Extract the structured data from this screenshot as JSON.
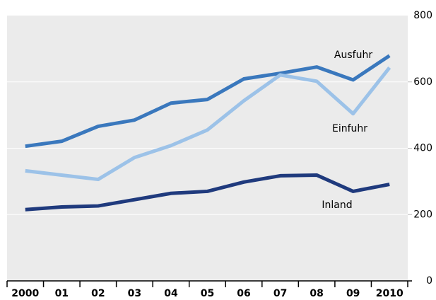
{
  "chart_data": {
    "type": "line",
    "categories": [
      "2000",
      "01",
      "02",
      "03",
      "04",
      "05",
      "06",
      "07",
      "08",
      "09",
      "2010"
    ],
    "series": [
      {
        "name": "Ausfuhr",
        "color": "#3a78bd",
        "values": [
          406,
          421,
          466,
          485,
          536,
          547,
          609,
          626,
          645,
          606,
          679
        ]
      },
      {
        "name": "Einfuhr",
        "color": "#9cc2e8",
        "values": [
          332,
          319,
          306,
          372,
          408,
          455,
          543,
          621,
          602,
          504,
          643
        ]
      },
      {
        "name": "Inland",
        "color": "#1f3a7d",
        "values": [
          215,
          223,
          226,
          245,
          264,
          270,
          298,
          317,
          319,
          270,
          291
        ]
      }
    ],
    "ylim": [
      0,
      800
    ],
    "yticks": [
      0,
      200,
      400,
      600,
      800
    ],
    "grid": true
  }
}
